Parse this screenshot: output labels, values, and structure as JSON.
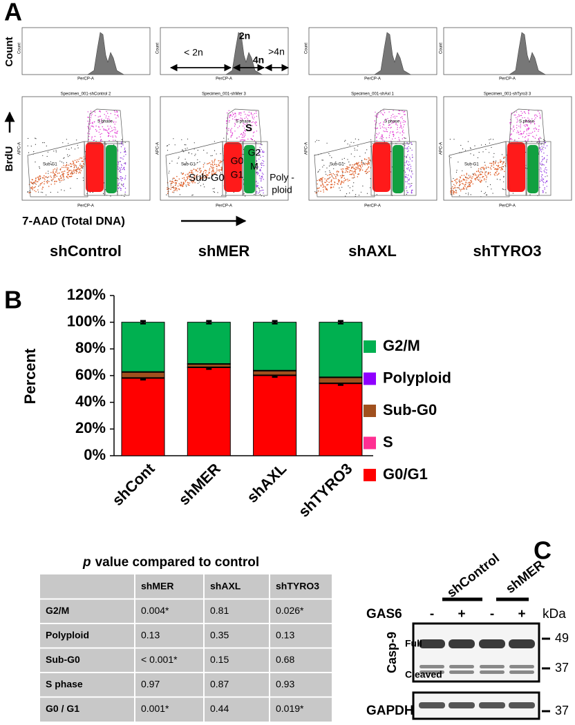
{
  "panel_labels": {
    "a": "A",
    "b": "B",
    "c": "C"
  },
  "panel_a": {
    "count_label": "Count",
    "brdu_label": "BrdU",
    "dna_label": "7-AAD (Total DNA)",
    "axis_x": "PerCP-A",
    "axis_y": "APC-A",
    "gate_s": "S phase",
    "gate_sub": "Sub-G1",
    "samples": [
      {
        "name": "shControl",
        "specimen": "Specimen_001-shControl 2"
      },
      {
        "name": "shMER",
        "specimen": "Specimen_001-shMer 3"
      },
      {
        "name": "shAXL",
        "specimen": "Specimen_001-shAxl 1"
      },
      {
        "name": "shTYRO3",
        "specimen": "Specimen_001-shTyro3 3"
      }
    ],
    "ploidy_labels": {
      "below_2n": "< 2n",
      "n2": "2n",
      "n4": "4n",
      "above_4n": ">4n"
    },
    "phase_labels": {
      "s": "S",
      "sub_g0": "Sub-G0",
      "g0g1": [
        "G0",
        "G1"
      ],
      "g2m": [
        "G2",
        "M"
      ],
      "polyploid": [
        "Poly -",
        "ploid"
      ]
    }
  },
  "chart_data": {
    "type": "bar",
    "stacked": true,
    "ylabel": "Percent",
    "categories": [
      "shCont",
      "shMER",
      "shAXL",
      "shTYRO3"
    ],
    "series": [
      {
        "name": "G0/G1",
        "color": "#ff0000",
        "values": [
          58,
          66,
          60,
          54
        ],
        "errors": [
          1,
          1,
          1,
          1
        ]
      },
      {
        "name": "S",
        "color": "#ff2f92",
        "values": [
          0.5,
          0.5,
          0.5,
          0.5
        ]
      },
      {
        "name": "Sub-G0",
        "color": "#a0501e",
        "values": [
          4,
          2,
          3,
          4
        ]
      },
      {
        "name": "Polyploid",
        "color": "#8f00ff",
        "values": [
          0.5,
          0.5,
          0.5,
          0.5
        ]
      },
      {
        "name": "G2/M",
        "color": "#00b050",
        "values": [
          37,
          31,
          36,
          41
        ],
        "errors": [
          1,
          1,
          1,
          1
        ]
      }
    ],
    "ylim": [
      0,
      120
    ],
    "yticks": [
      {
        "value": 0,
        "label": "0%"
      },
      {
        "value": 20,
        "label": "20%"
      },
      {
        "value": 40,
        "label": "40%"
      },
      {
        "value": 60,
        "label": "60%"
      },
      {
        "value": 80,
        "label": "80%"
      },
      {
        "value": 100,
        "label": "100%"
      },
      {
        "value": 120,
        "label": "120%"
      }
    ],
    "grid": false,
    "legend": "right"
  },
  "table": {
    "title": [
      "p",
      "value compared to control"
    ],
    "columns": [
      "shMER",
      "shAXL",
      "shTYRO3"
    ],
    "rows": [
      {
        "label": "G2/M",
        "values": [
          "0.004*",
          "0.81",
          "0.026*"
        ]
      },
      {
        "label": "Polyploid",
        "values": [
          "0.13",
          "0.35",
          "0.13"
        ]
      },
      {
        "label": "Sub-G0",
        "values": [
          "< 0.001*",
          "0.15",
          "0.68"
        ]
      },
      {
        "label": "S phase",
        "values": [
          "0.97",
          "0.87",
          "0.93"
        ]
      },
      {
        "label": "G0 / G1",
        "values": [
          "0.001*",
          "0.44",
          "0.019*"
        ]
      }
    ]
  },
  "blot": {
    "groups": [
      "shControl",
      "shMER"
    ],
    "treatment": "GAS6",
    "lane_signs": [
      "-",
      "+",
      "-",
      "+"
    ],
    "unit": "kDa",
    "markers": [
      49,
      37,
      37
    ],
    "protein": "Casp-9",
    "band_full": "Full",
    "band_cleaved": "Cleaved",
    "loading": "GAPDH"
  }
}
